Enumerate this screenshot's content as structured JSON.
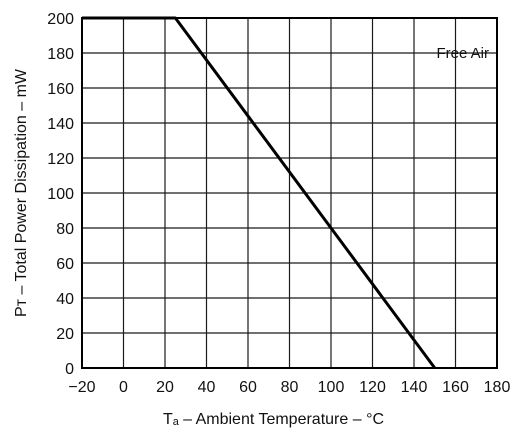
{
  "chart_data": {
    "type": "line",
    "title": "",
    "xlabel": "Tₐ – Ambient Temperature – °C",
    "ylabel": "Pᴛ – Total Power Dissipation – mW",
    "xlim": [
      -20,
      180
    ],
    "ylim": [
      0,
      200
    ],
    "x_ticks": [
      -20,
      0,
      20,
      40,
      60,
      80,
      100,
      120,
      140,
      160,
      180
    ],
    "y_ticks": [
      0,
      20,
      40,
      60,
      80,
      100,
      120,
      140,
      160,
      180,
      200
    ],
    "grid": true,
    "annotations": [
      {
        "text": "Free Air"
      }
    ],
    "series": [
      {
        "x": [
          -20,
          25,
          150
        ],
        "y": [
          200,
          200,
          0
        ]
      }
    ]
  }
}
